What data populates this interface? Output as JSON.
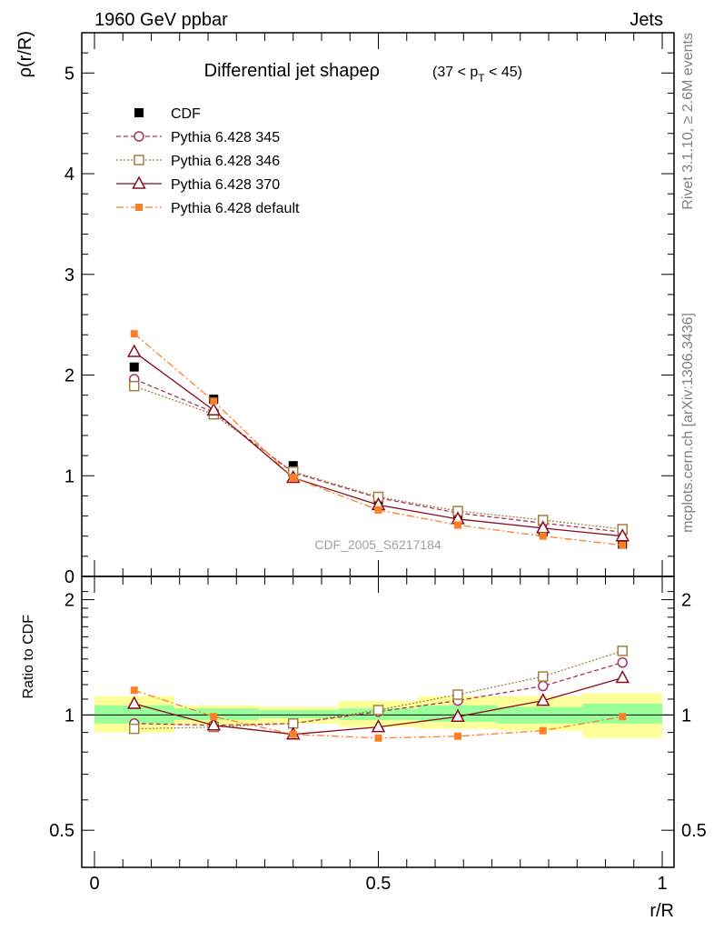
{
  "header": {
    "left": "1960 GeV ppbar",
    "right": "Jets",
    "title_main": "Differential jet shapeρ",
    "title_range": "(37 < p",
    "title_range_sub": "T",
    "title_range_end": " < 45)",
    "side_top": "Rivet 3.1.10, ≥ 2.6M events",
    "side_bottom": "mcplots.cern.ch [arXiv:1306.3436]",
    "watermark": "CDF_2005_S6217184"
  },
  "colors": {
    "cdf": "#000000",
    "p345": "#b03060",
    "p346": "#a08040",
    "p370": "#8b0a1e",
    "pdefault": "#ff7f27",
    "band_outer": "#ffff99",
    "band_inner": "#99ff99"
  },
  "chart_data": [
    {
      "type": "line",
      "title": "Differential jet shapeρ (37 < pT < 45)",
      "xlabel": "r/R",
      "ylabel": "ρ(r/R)",
      "xlim": [
        0,
        1
      ],
      "ylim": [
        0,
        5.4
      ],
      "yticks": [
        0,
        1,
        2,
        3,
        4,
        5
      ],
      "ytick_labels": [
        "0",
        "1",
        "2",
        "3",
        "4",
        "5"
      ],
      "legend_position": "top-left",
      "x": [
        0.07,
        0.21,
        0.35,
        0.5,
        0.64,
        0.79,
        0.93
      ],
      "series": [
        {
          "name": "CDF",
          "key": "cdf",
          "style": "square-filled",
          "values": [
            2.08,
            1.76,
            1.1,
            0.76,
            0.58,
            0.44,
            0.32
          ]
        },
        {
          "name": "Pythia 6.428 345",
          "key": "p345",
          "style": "circle-dashed",
          "values": [
            1.96,
            1.63,
            1.03,
            0.78,
            0.63,
            0.53,
            0.44
          ]
        },
        {
          "name": "Pythia 6.428 346",
          "key": "p346",
          "style": "square-dotted",
          "values": [
            1.89,
            1.61,
            1.04,
            0.79,
            0.65,
            0.56,
            0.47
          ]
        },
        {
          "name": "Pythia 6.428 370",
          "key": "p370",
          "style": "triangle-solid",
          "values": [
            2.23,
            1.65,
            0.98,
            0.71,
            0.57,
            0.48,
            0.4
          ]
        },
        {
          "name": "Pythia 6.428 default",
          "key": "pdefault",
          "style": "square-dashdot",
          "values": [
            2.41,
            1.74,
            0.98,
            0.66,
            0.51,
            0.4,
            0.31
          ]
        }
      ]
    },
    {
      "type": "line",
      "ylabel": "Ratio to CDF",
      "xlabel": "r/R",
      "xlim": [
        0,
        1
      ],
      "ylim": [
        0.4,
        2.3
      ],
      "yscale": "log",
      "yticks": [
        0.5,
        1,
        2
      ],
      "ytick_labels": [
        "0.5",
        "1",
        "2"
      ],
      "xticks": [
        0,
        0.5,
        1
      ],
      "xtick_labels": [
        "0",
        "0.5",
        "1"
      ],
      "x": [
        0.07,
        0.21,
        0.35,
        0.5,
        0.64,
        0.79,
        0.93
      ],
      "bands": {
        "edges": [
          0,
          0.14,
          0.29,
          0.43,
          0.57,
          0.71,
          0.86,
          1.0
        ],
        "outer_low": [
          0.9,
          0.94,
          0.95,
          0.93,
          0.92,
          0.91,
          0.87
        ],
        "outer_high": [
          1.12,
          1.06,
          1.05,
          1.09,
          1.12,
          1.12,
          1.14
        ],
        "inner_low": [
          0.95,
          0.97,
          0.98,
          0.97,
          0.96,
          0.95,
          0.95
        ],
        "inner_high": [
          1.06,
          1.04,
          1.03,
          1.04,
          1.06,
          1.05,
          1.07
        ]
      },
      "series": [
        {
          "name": "Pythia 6.428 345",
          "key": "p345",
          "style": "circle-dashed",
          "values": [
            0.95,
            0.94,
            0.95,
            1.02,
            1.09,
            1.19,
            1.37
          ]
        },
        {
          "name": "Pythia 6.428 346",
          "key": "p346",
          "style": "square-dotted",
          "values": [
            0.92,
            0.93,
            0.95,
            1.03,
            1.13,
            1.26,
            1.47
          ]
        },
        {
          "name": "Pythia 6.428 370",
          "key": "p370",
          "style": "triangle-solid",
          "values": [
            1.07,
            0.94,
            0.89,
            0.93,
            0.99,
            1.09,
            1.25
          ]
        },
        {
          "name": "Pythia 6.428 default",
          "key": "pdefault",
          "style": "square-dashdot",
          "values": [
            1.16,
            0.99,
            0.89,
            0.87,
            0.88,
            0.91,
            0.99
          ]
        }
      ]
    }
  ]
}
